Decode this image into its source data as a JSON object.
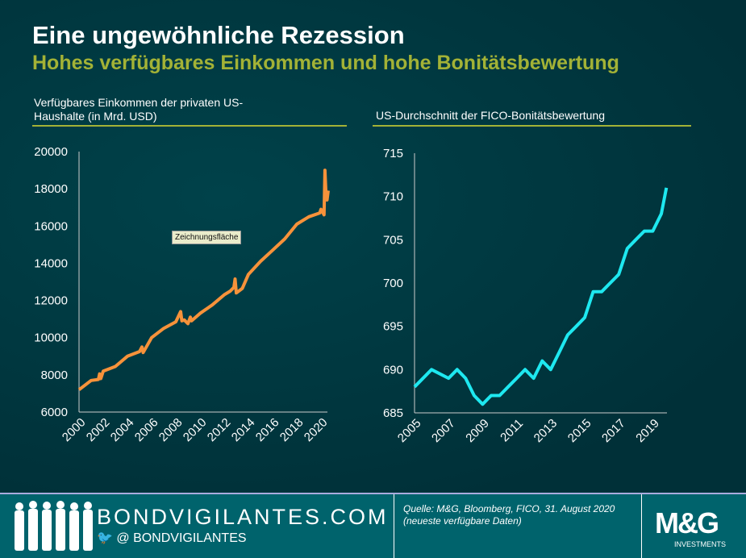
{
  "header": {
    "title": "Eine ungewöhnliche Rezession",
    "subtitle": "Hohes verfügbares Einkommen und hohe Bonitätsbewertung"
  },
  "tooltip": "Zeichnungsfläche",
  "footer": {
    "site": "BONDVIGILANTES.COM",
    "twitter": "@ BONDVIGILANTES",
    "source_line1": "Quelle: M&G, Bloomberg, FICO, 31. August 2020",
    "source_line2": "(neueste verfügbare Daten)",
    "logo": "M&G",
    "logo_sub": "INVESTMENTS"
  },
  "chart_data": [
    {
      "type": "line",
      "title": "Verfügbares Einkommen der privaten US-Haushalte (in Mrd. USD)",
      "color": "#f7923a",
      "ylim": [
        6000,
        20000
      ],
      "yticks": [
        6000,
        8000,
        10000,
        12000,
        14000,
        16000,
        18000,
        20000
      ],
      "xlim": [
        2000,
        2020.6
      ],
      "xticks": [
        "2000",
        "2002",
        "2004",
        "2006",
        "2008",
        "2010",
        "2012",
        "2014",
        "2016",
        "2018",
        "2020"
      ],
      "x": [
        2000,
        2001,
        2001.6,
        2001.7,
        2001.8,
        2002,
        2003,
        2004,
        2005,
        2005.2,
        2005.3,
        2006,
        2007,
        2008,
        2008.4,
        2008.5,
        2008.7,
        2009,
        2009.2,
        2009.3,
        2010,
        2011,
        2012,
        2012.5,
        2012.8,
        2012.9,
        2013,
        2013.5,
        2014,
        2015,
        2016,
        2017,
        2018,
        2019,
        2019.9,
        2020.0,
        2020.25,
        2020.33,
        2020.4,
        2020.5,
        2020.6
      ],
      "y": [
        7200,
        7700,
        7750,
        8050,
        7800,
        8200,
        8450,
        9000,
        9250,
        9500,
        9200,
        10000,
        10500,
        10850,
        11400,
        10900,
        10950,
        10750,
        11100,
        10900,
        11300,
        11750,
        12300,
        12500,
        12700,
        13150,
        12400,
        12650,
        13400,
        14100,
        14700,
        15300,
        16100,
        16500,
        16700,
        16900,
        16600,
        19000,
        17900,
        17400,
        17900
      ]
    },
    {
      "type": "line",
      "title": "US-Durchschnitt der FICO-Bonitätsbewertung",
      "color": "#1ee8f0",
      "ylim": [
        685,
        715
      ],
      "yticks": [
        685,
        690,
        695,
        700,
        705,
        710,
        715
      ],
      "xlim": [
        2005,
        2019.8
      ],
      "xticks": [
        "2005",
        "2007",
        "2009",
        "2011",
        "2013",
        "2015",
        "2017",
        "2019"
      ],
      "x": [
        2005,
        2006,
        2007,
        2007.5,
        2008,
        2008.5,
        2009,
        2009.5,
        2010,
        2010.5,
        2011,
        2011.5,
        2012,
        2012.5,
        2013,
        2013.5,
        2014,
        2014.5,
        2015,
        2015.5,
        2016,
        2016.5,
        2017,
        2017.5,
        2018,
        2018.5,
        2019,
        2019.5,
        2019.8
      ],
      "y": [
        688,
        690,
        689,
        690,
        689,
        687,
        686,
        687,
        687,
        688,
        689,
        690,
        689,
        691,
        690,
        692,
        694,
        695,
        696,
        699,
        699,
        700,
        701,
        704,
        705,
        706,
        706,
        708,
        711
      ]
    }
  ]
}
